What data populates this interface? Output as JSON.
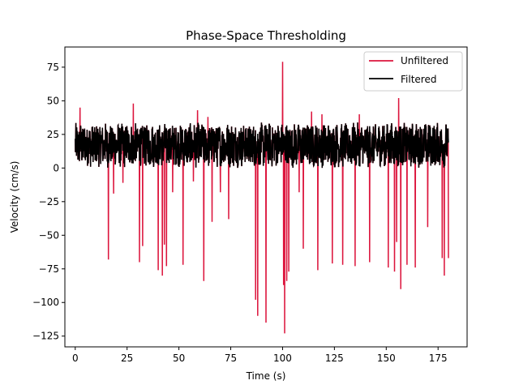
{
  "chart_data": {
    "type": "line",
    "title": "Phase-Space Thresholding",
    "xlabel": "Time (s)",
    "ylabel": "Velocity (cm/s)",
    "xlim": [
      -5,
      189
    ],
    "ylim": [
      -133,
      90
    ],
    "xticks": [
      0,
      25,
      50,
      75,
      100,
      125,
      150,
      175
    ],
    "yticks": [
      75,
      50,
      25,
      0,
      -25,
      -50,
      -75,
      -100,
      -125
    ],
    "xtick_labels": [
      "0",
      "25",
      "50",
      "75",
      "100",
      "125",
      "150",
      "175"
    ],
    "ytick_labels": [
      "75",
      "50",
      "25",
      "0",
      "−25",
      "−50",
      "−75",
      "−100",
      "−125"
    ],
    "legend_position": "top-right",
    "series": [
      {
        "name": "Unfiltered",
        "color": "#dc143c",
        "baseline_range": [
          0,
          180
        ],
        "spikes": [
          [
            2.3,
            45
          ],
          [
            16,
            -68
          ],
          [
            18.5,
            -19
          ],
          [
            23,
            -11
          ],
          [
            28,
            48
          ],
          [
            31,
            -70
          ],
          [
            32.5,
            -58
          ],
          [
            35,
            28
          ],
          [
            40,
            -76
          ],
          [
            42,
            -80
          ],
          [
            43,
            -57
          ],
          [
            44,
            -73
          ],
          [
            47,
            -18
          ],
          [
            52,
            -72
          ],
          [
            57,
            -10
          ],
          [
            59,
            43
          ],
          [
            62,
            -84
          ],
          [
            64,
            38
          ],
          [
            66,
            -40
          ],
          [
            70,
            -18
          ],
          [
            74,
            -38
          ],
          [
            87,
            -98
          ],
          [
            88,
            -110
          ],
          [
            92,
            -115
          ],
          [
            99.5,
            26
          ],
          [
            100,
            79
          ],
          [
            100.5,
            -87
          ],
          [
            101,
            -123
          ],
          [
            102,
            -84
          ],
          [
            103,
            -77
          ],
          [
            108,
            -18
          ],
          [
            110,
            -60
          ],
          [
            114,
            42
          ],
          [
            117,
            -76
          ],
          [
            119,
            40
          ],
          [
            124,
            -71
          ],
          [
            129,
            -72
          ],
          [
            135,
            -73
          ],
          [
            137,
            40
          ],
          [
            142,
            -70
          ],
          [
            151,
            -74
          ],
          [
            154,
            -77
          ],
          [
            155,
            -55
          ],
          [
            156,
            52
          ],
          [
            157,
            -90
          ],
          [
            160,
            -72
          ],
          [
            164,
            -74
          ],
          [
            170,
            -44
          ],
          [
            177,
            -67
          ],
          [
            178,
            -80
          ],
          [
            180,
            -67
          ]
        ]
      },
      {
        "name": "Filtered",
        "color": "#000000",
        "range": [
          0,
          180
        ],
        "mean": 17,
        "min": 0,
        "max": 36
      }
    ]
  }
}
